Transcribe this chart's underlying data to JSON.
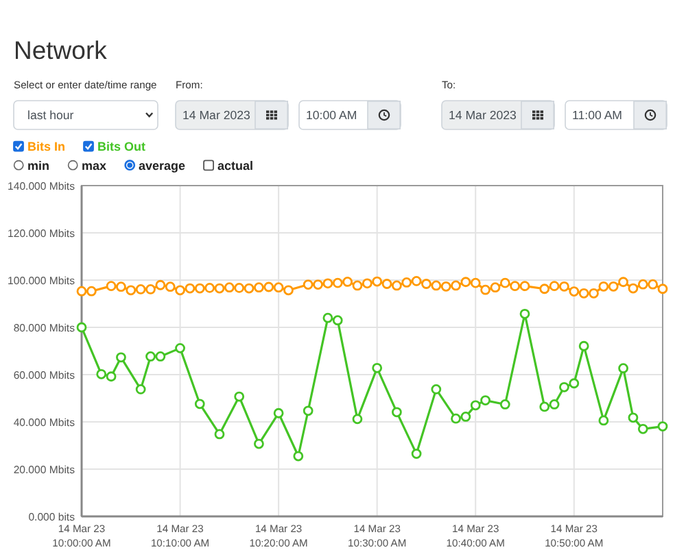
{
  "chart_data": {
    "type": "line",
    "title": "Network",
    "annotations": [
      "Select or enter date/time range",
      "last hour",
      "From:",
      "14 Mar 2023",
      "10:00 AM",
      "To:",
      "14 Mar 2023",
      "11:00 AM",
      "min",
      "max",
      "average",
      "actual"
    ],
    "xlim": [
      "2023-03-14T10:00",
      "2023-03-14T10:59"
    ],
    "xticks": [
      {
        "value": "2023-03-14T10:00",
        "label": "14 Mar 23\n10:00:00 AM"
      },
      {
        "value": "2023-03-14T10:10",
        "label": "14 Mar 23\n10:10:00 AM"
      },
      {
        "value": "2023-03-14T10:20",
        "label": "14 Mar 23\n10:20:00 AM"
      },
      {
        "value": "2023-03-14T10:30",
        "label": "14 Mar 23\n10:30:00 AM"
      },
      {
        "value": "2023-03-14T10:40",
        "label": "14 Mar 23\n10:40:00 AM"
      },
      {
        "value": "2023-03-14T10:50",
        "label": "14 Mar 23\n10:50:00 AM"
      }
    ],
    "ylim": [
      0,
      140
    ],
    "yticks": [
      {
        "value": 0,
        "label": "0.000 bits"
      },
      {
        "value": 20,
        "label": "20.000 Mbits"
      },
      {
        "value": 40,
        "label": "40.000 Mbits"
      },
      {
        "value": 60,
        "label": "60.000 Mbits"
      },
      {
        "value": 80,
        "label": "80.000 Mbits"
      },
      {
        "value": 100,
        "label": "100.000 Mbits"
      },
      {
        "value": 120,
        "label": "120.000 Mbits"
      },
      {
        "value": 140,
        "label": "140.000 Mbits"
      }
    ],
    "grid": true,
    "legend": "top left",
    "marker": "circle",
    "line_style": "solid",
    "series": [
      {
        "name": "Bits In",
        "color": "#ff9900",
        "x": [
          "2023-03-14T10:00",
          "2023-03-14T10:01",
          "2023-03-14T10:03",
          "2023-03-14T10:04",
          "2023-03-14T10:05",
          "2023-03-14T10:06",
          "2023-03-14T10:07",
          "2023-03-14T10:08",
          "2023-03-14T10:09",
          "2023-03-14T10:10",
          "2023-03-14T10:11",
          "2023-03-14T10:12",
          "2023-03-14T10:13",
          "2023-03-14T10:14",
          "2023-03-14T10:15",
          "2023-03-14T10:16",
          "2023-03-14T10:17",
          "2023-03-14T10:18",
          "2023-03-14T10:19",
          "2023-03-14T10:20",
          "2023-03-14T10:21",
          "2023-03-14T10:23",
          "2023-03-14T10:24",
          "2023-03-14T10:25",
          "2023-03-14T10:26",
          "2023-03-14T10:27",
          "2023-03-14T10:28",
          "2023-03-14T10:29",
          "2023-03-14T10:30",
          "2023-03-14T10:31",
          "2023-03-14T10:32",
          "2023-03-14T10:33",
          "2023-03-14T10:34",
          "2023-03-14T10:35",
          "2023-03-14T10:36",
          "2023-03-14T10:37",
          "2023-03-14T10:38",
          "2023-03-14T10:39",
          "2023-03-14T10:40",
          "2023-03-14T10:41",
          "2023-03-14T10:42",
          "2023-03-14T10:43",
          "2023-03-14T10:44",
          "2023-03-14T10:45",
          "2023-03-14T10:47",
          "2023-03-14T10:48",
          "2023-03-14T10:49",
          "2023-03-14T10:50",
          "2023-03-14T10:51",
          "2023-03-14T10:52",
          "2023-03-14T10:53",
          "2023-03-14T10:54",
          "2023-03-14T10:55",
          "2023-03-14T10:56",
          "2023-03-14T10:57",
          "2023-03-14T10:58",
          "2023-03-14T10:59"
        ],
        "values": [
          95.3,
          95.3,
          97.5,
          97.2,
          95.7,
          96.1,
          96.1,
          97.9,
          97.2,
          95.7,
          96.5,
          96.5,
          96.7,
          96.5,
          96.9,
          96.7,
          96.5,
          96.9,
          97.1,
          96.9,
          95.7,
          98.1,
          98.1,
          98.6,
          98.8,
          99.3,
          97.7,
          98.6,
          99.4,
          98.4,
          97.7,
          99.0,
          99.6,
          98.4,
          97.7,
          97.3,
          97.7,
          99.2,
          98.8,
          95.9,
          96.9,
          98.8,
          97.5,
          97.5,
          96.3,
          97.5,
          97.3,
          95.2,
          94.4,
          94.4,
          97.3,
          97.3,
          99.2,
          96.5,
          98.2,
          98.2,
          96.3
        ]
      },
      {
        "name": "Bits Out",
        "color": "#44c425",
        "x": [
          "2023-03-14T10:00",
          "2023-03-14T10:02",
          "2023-03-14T10:03",
          "2023-03-14T10:04",
          "2023-03-14T10:06",
          "2023-03-14T10:07",
          "2023-03-14T10:08",
          "2023-03-14T10:10",
          "2023-03-14T10:12",
          "2023-03-14T10:14",
          "2023-03-14T10:16",
          "2023-03-14T10:18",
          "2023-03-14T10:20",
          "2023-03-14T10:22",
          "2023-03-14T10:23",
          "2023-03-14T10:25",
          "2023-03-14T10:26",
          "2023-03-14T10:28",
          "2023-03-14T10:30",
          "2023-03-14T10:32",
          "2023-03-14T10:34",
          "2023-03-14T10:36",
          "2023-03-14T10:38",
          "2023-03-14T10:39",
          "2023-03-14T10:40",
          "2023-03-14T10:41",
          "2023-03-14T10:43",
          "2023-03-14T10:45",
          "2023-03-14T10:47",
          "2023-03-14T10:48",
          "2023-03-14T10:49",
          "2023-03-14T10:50",
          "2023-03-14T10:51",
          "2023-03-14T10:53",
          "2023-03-14T10:55",
          "2023-03-14T10:56",
          "2023-03-14T10:57",
          "2023-03-14T10:59"
        ],
        "values": [
          80.0,
          60.2,
          59.2,
          67.3,
          53.8,
          67.7,
          67.7,
          71.2,
          47.6,
          34.8,
          50.7,
          30.7,
          43.7,
          25.5,
          44.7,
          84.0,
          83.0,
          41.2,
          62.8,
          44.1,
          26.5,
          53.8,
          41.4,
          42.2,
          47.0,
          49.1,
          47.4,
          85.7,
          46.4,
          47.4,
          54.7,
          56.3,
          72.1,
          40.6,
          62.7,
          41.8,
          37.0,
          38.1
        ]
      }
    ]
  }
}
